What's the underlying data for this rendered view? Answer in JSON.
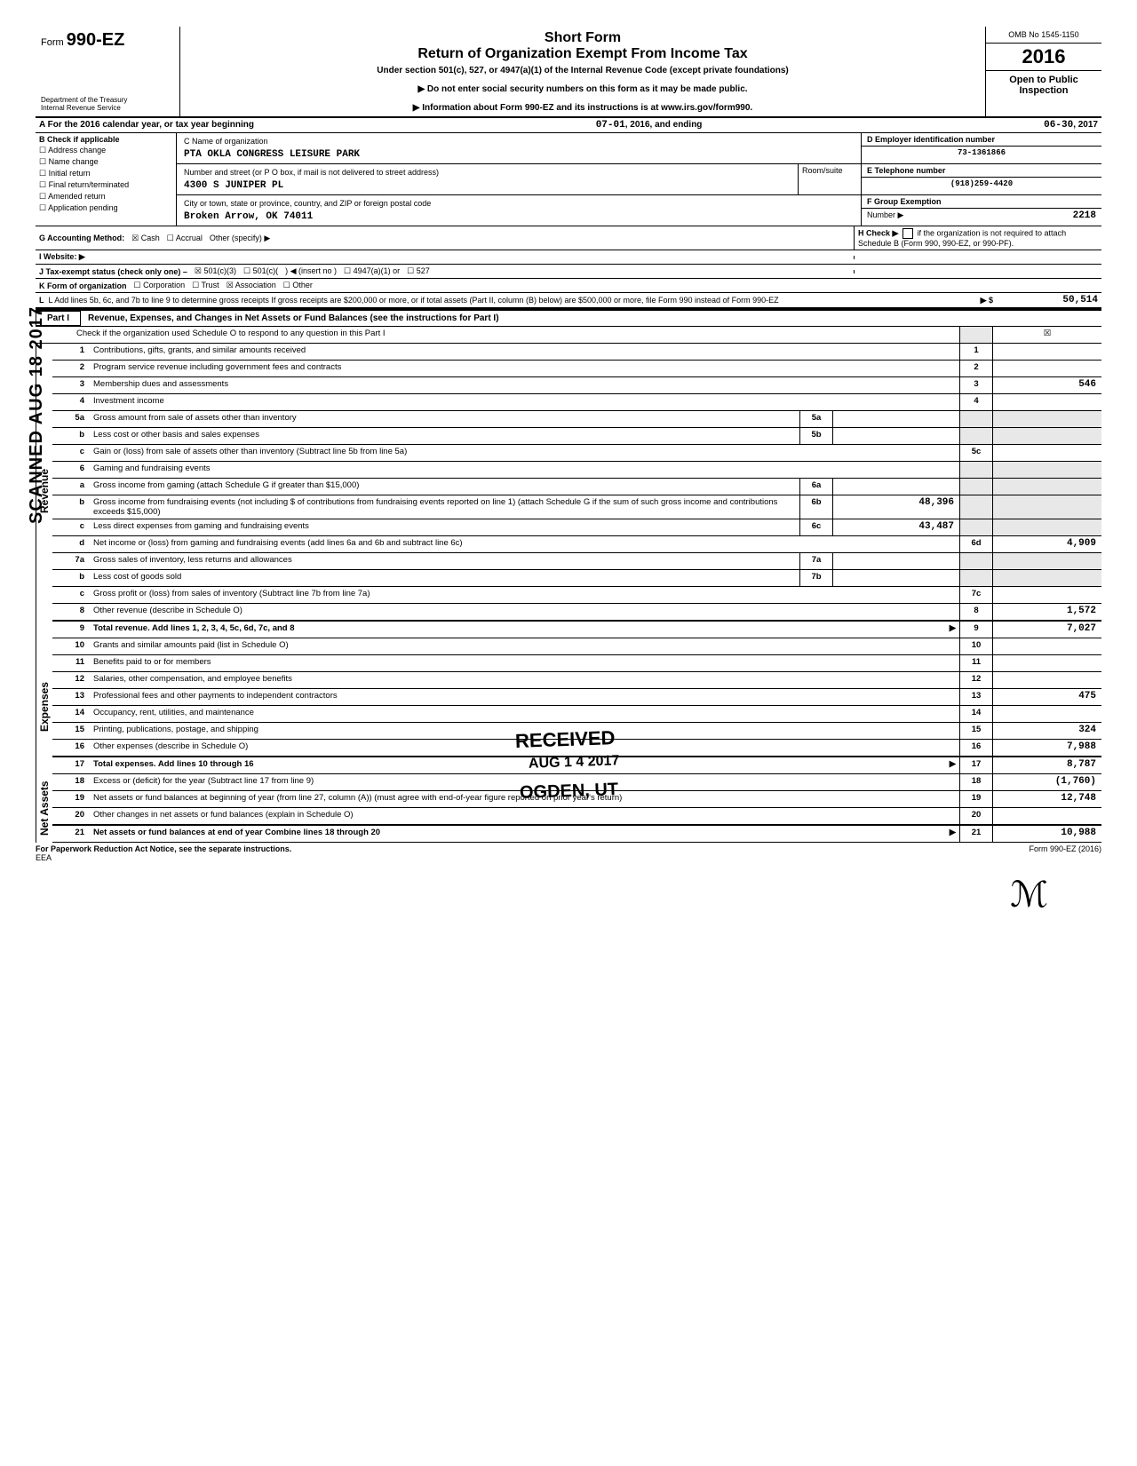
{
  "header": {
    "form_label": "Form",
    "form_number": "990-EZ",
    "title_line1": "Short Form",
    "title_line2": "Return of Organization Exempt From Income Tax",
    "subtitle": "Under section 501(c), 527, or 4947(a)(1) of the Internal Revenue Code (except private foundations)",
    "arrow1": "▶  Do not enter social security numbers on this form as it may be made public.",
    "arrow2": "▶  Information about Form 990-EZ and its instructions is at www.irs.gov/form990.",
    "dept": "Department of the Treasury\nInternal Revenue Service",
    "omb": "OMB No 1545-1150",
    "year": "2016",
    "open1": "Open to Public",
    "open2": "Inspection"
  },
  "rowA": {
    "label": "A  For the 2016 calendar year, or tax year beginning",
    "begin": "07-01",
    "mid": ", 2016, and ending",
    "end": "06-30",
    "end2": ", 2017"
  },
  "B": {
    "label": "B  Check if applicable",
    "items": [
      "Address change",
      "Name change",
      "Initial return",
      "Final return/terminated",
      "Amended return",
      "Application pending"
    ]
  },
  "C": {
    "name_label": "C  Name of organization",
    "name": "PTA OKLA CONGRESS LEISURE PARK",
    "addr_label": "Number and street (or P O  box, if mail is not delivered to street address)",
    "room_label": "Room/suite",
    "addr": "4300 S JUNIPER PL",
    "city_label": "City or town, state or province, country, and ZIP or foreign postal code",
    "city": "Broken Arrow, OK 74011"
  },
  "D": {
    "label": "D  Employer identification number",
    "value": "73-1361866"
  },
  "E": {
    "label": "E  Telephone number",
    "value": "(918)259-4420"
  },
  "F": {
    "label": "F  Group Exemption",
    "num_label": "Number  ▶",
    "value": "2218"
  },
  "G": {
    "label": "G  Accounting Method:",
    "cash": "Cash",
    "accrual": "Accrual",
    "other": "Other (specify) ▶"
  },
  "H": {
    "label": "H  Check ▶",
    "text": "if the organization is not required to attach Schedule B (Form 990, 990-EZ, or 990-PF)."
  },
  "I": {
    "label": "I   Website:  ▶"
  },
  "J": {
    "label": "J   Tax-exempt status (check only one) –",
    "o1": "501(c)(3)",
    "o2": "501(c)(",
    "o3": ") ◀ (insert no )",
    "o4": "4947(a)(1) or",
    "o5": "527"
  },
  "K": {
    "label": "K  Form of organization",
    "o1": "Corporation",
    "o2": "Trust",
    "o3": "Association",
    "o4": "Other"
  },
  "L": {
    "label": "L  Add lines 5b, 6c, and 7b to line 9 to determine gross receipts  If gross receipts are $200,000 or more, or if total assets (Part II, column (B) below) are $500,000 or more, file Form 990 instead of Form 990-EZ",
    "arrow": "▶  $",
    "value": "50,514"
  },
  "part1": {
    "label": "Part I",
    "title": "Revenue, Expenses, and Changes in Net Assets or Fund Balances (see the instructions for Part I)",
    "check_line": "Check if the organization used Schedule O to respond to any question in this Part I"
  },
  "lines": {
    "l1": {
      "n": "1",
      "d": "Contributions, gifts, grants, and similar amounts received",
      "b": "1",
      "v": ""
    },
    "l2": {
      "n": "2",
      "d": "Program service revenue including government fees and contracts",
      "b": "2",
      "v": ""
    },
    "l3": {
      "n": "3",
      "d": "Membership dues and assessments",
      "b": "3",
      "v": "546"
    },
    "l4": {
      "n": "4",
      "d": "Investment income",
      "b": "4",
      "v": ""
    },
    "l5a": {
      "n": "5a",
      "d": "Gross amount from sale of assets other than inventory",
      "mb": "5a",
      "mv": ""
    },
    "l5b": {
      "n": "b",
      "d": "Less  cost or other basis and sales expenses",
      "mb": "5b",
      "mv": ""
    },
    "l5c": {
      "n": "c",
      "d": "Gain or (loss) from sale of assets other than inventory (Subtract line 5b from line 5a)",
      "b": "5c",
      "v": ""
    },
    "l6": {
      "n": "6",
      "d": "Gaming and fundraising events"
    },
    "l6a": {
      "n": "a",
      "d": "Gross income from gaming (attach Schedule G if greater than $15,000)",
      "mb": "6a",
      "mv": ""
    },
    "l6b": {
      "n": "b",
      "d": "Gross income from fundraising events (not including   $                              of contributions from fundraising events reported on line 1) (attach Schedule G if the sum of such gross income and contributions exceeds $15,000)",
      "mb": "6b",
      "mv": "48,396"
    },
    "l6c": {
      "n": "c",
      "d": "Less  direct expenses from gaming and fundraising events",
      "mb": "6c",
      "mv": "43,487"
    },
    "l6d": {
      "n": "d",
      "d": "Net income or (loss) from gaming and fundraising events (add lines 6a and 6b and subtract line 6c)",
      "b": "6d",
      "v": "4,909"
    },
    "l7a": {
      "n": "7a",
      "d": "Gross sales of inventory, less returns and allowances",
      "mb": "7a",
      "mv": ""
    },
    "l7b": {
      "n": "b",
      "d": "Less  cost of goods sold",
      "mb": "7b",
      "mv": ""
    },
    "l7c": {
      "n": "c",
      "d": "Gross profit or (loss) from sales of inventory (Subtract line 7b from line 7a)",
      "b": "7c",
      "v": ""
    },
    "l8": {
      "n": "8",
      "d": "Other revenue (describe in Schedule O)",
      "b": "8",
      "v": "1,572"
    },
    "l9": {
      "n": "9",
      "d": "Total revenue.  Add lines 1, 2, 3, 4, 5c, 6d, 7c, and 8",
      "b": "9",
      "v": "7,027",
      "arrow": "▶"
    },
    "l10": {
      "n": "10",
      "d": "Grants and similar amounts paid (list in Schedule O)",
      "b": "10",
      "v": ""
    },
    "l11": {
      "n": "11",
      "d": "Benefits paid to or for members",
      "b": "11",
      "v": ""
    },
    "l12": {
      "n": "12",
      "d": "Salaries, other compensation, and employee benefits",
      "b": "12",
      "v": ""
    },
    "l13": {
      "n": "13",
      "d": "Professional fees and other payments to independent contractors",
      "b": "13",
      "v": "475"
    },
    "l14": {
      "n": "14",
      "d": "Occupancy, rent, utilities, and maintenance",
      "b": "14",
      "v": ""
    },
    "l15": {
      "n": "15",
      "d": "Printing, publications, postage, and shipping",
      "b": "15",
      "v": "324"
    },
    "l16": {
      "n": "16",
      "d": "Other expenses (describe in Schedule O)",
      "b": "16",
      "v": "7,988"
    },
    "l17": {
      "n": "17",
      "d": "Total expenses.  Add lines 10 through 16",
      "b": "17",
      "v": "8,787",
      "arrow": "▶"
    },
    "l18": {
      "n": "18",
      "d": "Excess or (deficit) for the year (Subtract line 17 from line 9)",
      "b": "18",
      "v": "(1,760)"
    },
    "l19": {
      "n": "19",
      "d": "Net assets or fund balances at beginning of year (from line 27, column (A)) (must agree with end-of-year figure reported on prior year's return)",
      "b": "19",
      "v": "12,748"
    },
    "l20": {
      "n": "20",
      "d": "Other changes in net assets or fund balances (explain in Schedule O)",
      "b": "20",
      "v": ""
    },
    "l21": {
      "n": "21",
      "d": "Net assets or fund balances at end of year  Combine lines 18 through 20",
      "b": "21",
      "v": "10,988",
      "arrow": "▶"
    }
  },
  "sections": {
    "revenue": "Revenue",
    "expenses": "Expenses",
    "netassets": "Net Assets"
  },
  "stamps": {
    "received": "RECEIVED",
    "date": "AUG 1 4 2017",
    "ogden": "OGDEN, UT",
    "scanned": "SCANNED AUG 18 2017"
  },
  "footer": {
    "left": "For Paperwork Reduction Act Notice, see the separate instructions.",
    "eea": "EEA",
    "right": "Form 990-EZ (2016)"
  }
}
